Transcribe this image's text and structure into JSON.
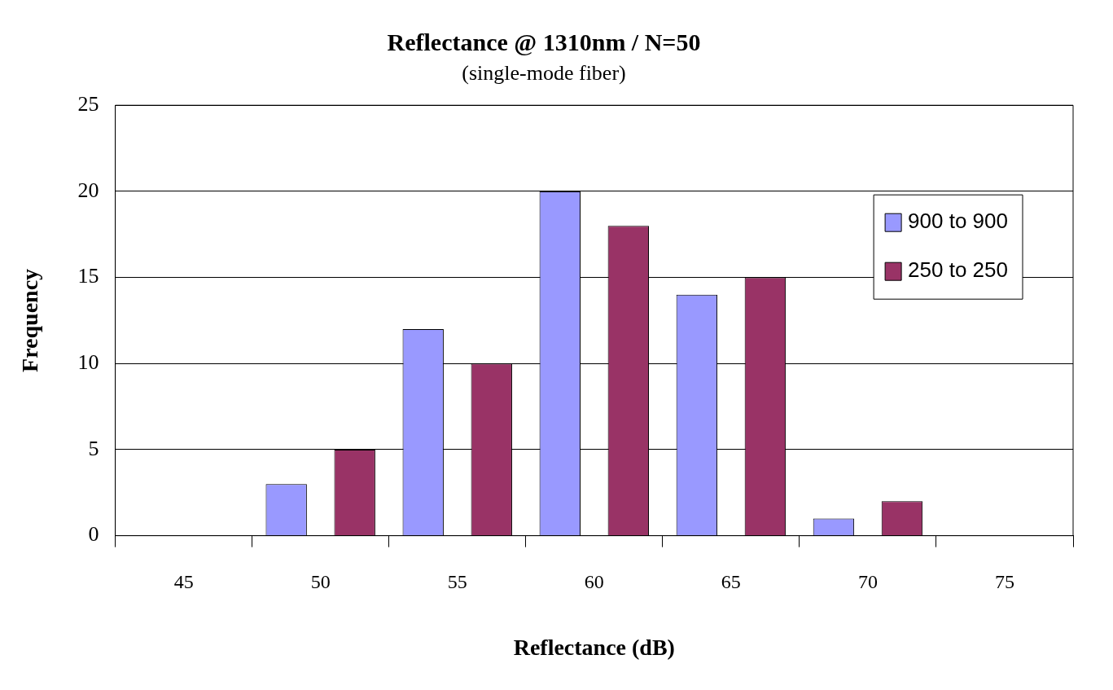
{
  "chart_data": {
    "type": "bar",
    "title": "Reflectance @ 1310nm / N=50",
    "subtitle": "(single-mode fiber)",
    "xlabel": "Reflectance (dB)",
    "ylabel": "Frequency",
    "categories": [
      "45",
      "50",
      "55",
      "60",
      "65",
      "70",
      "75"
    ],
    "series": [
      {
        "name": "900 to 900",
        "color": "#9999ff",
        "values": [
          0,
          3,
          12,
          20,
          14,
          1,
          0
        ]
      },
      {
        "name": "250 to 250",
        "color": "#993366",
        "values": [
          0,
          5,
          10,
          18,
          15,
          2,
          0
        ]
      }
    ],
    "ylim": [
      0,
      25
    ],
    "yticks": [
      0,
      5,
      10,
      15,
      20,
      25
    ],
    "grid": "y",
    "legend": "top right"
  }
}
